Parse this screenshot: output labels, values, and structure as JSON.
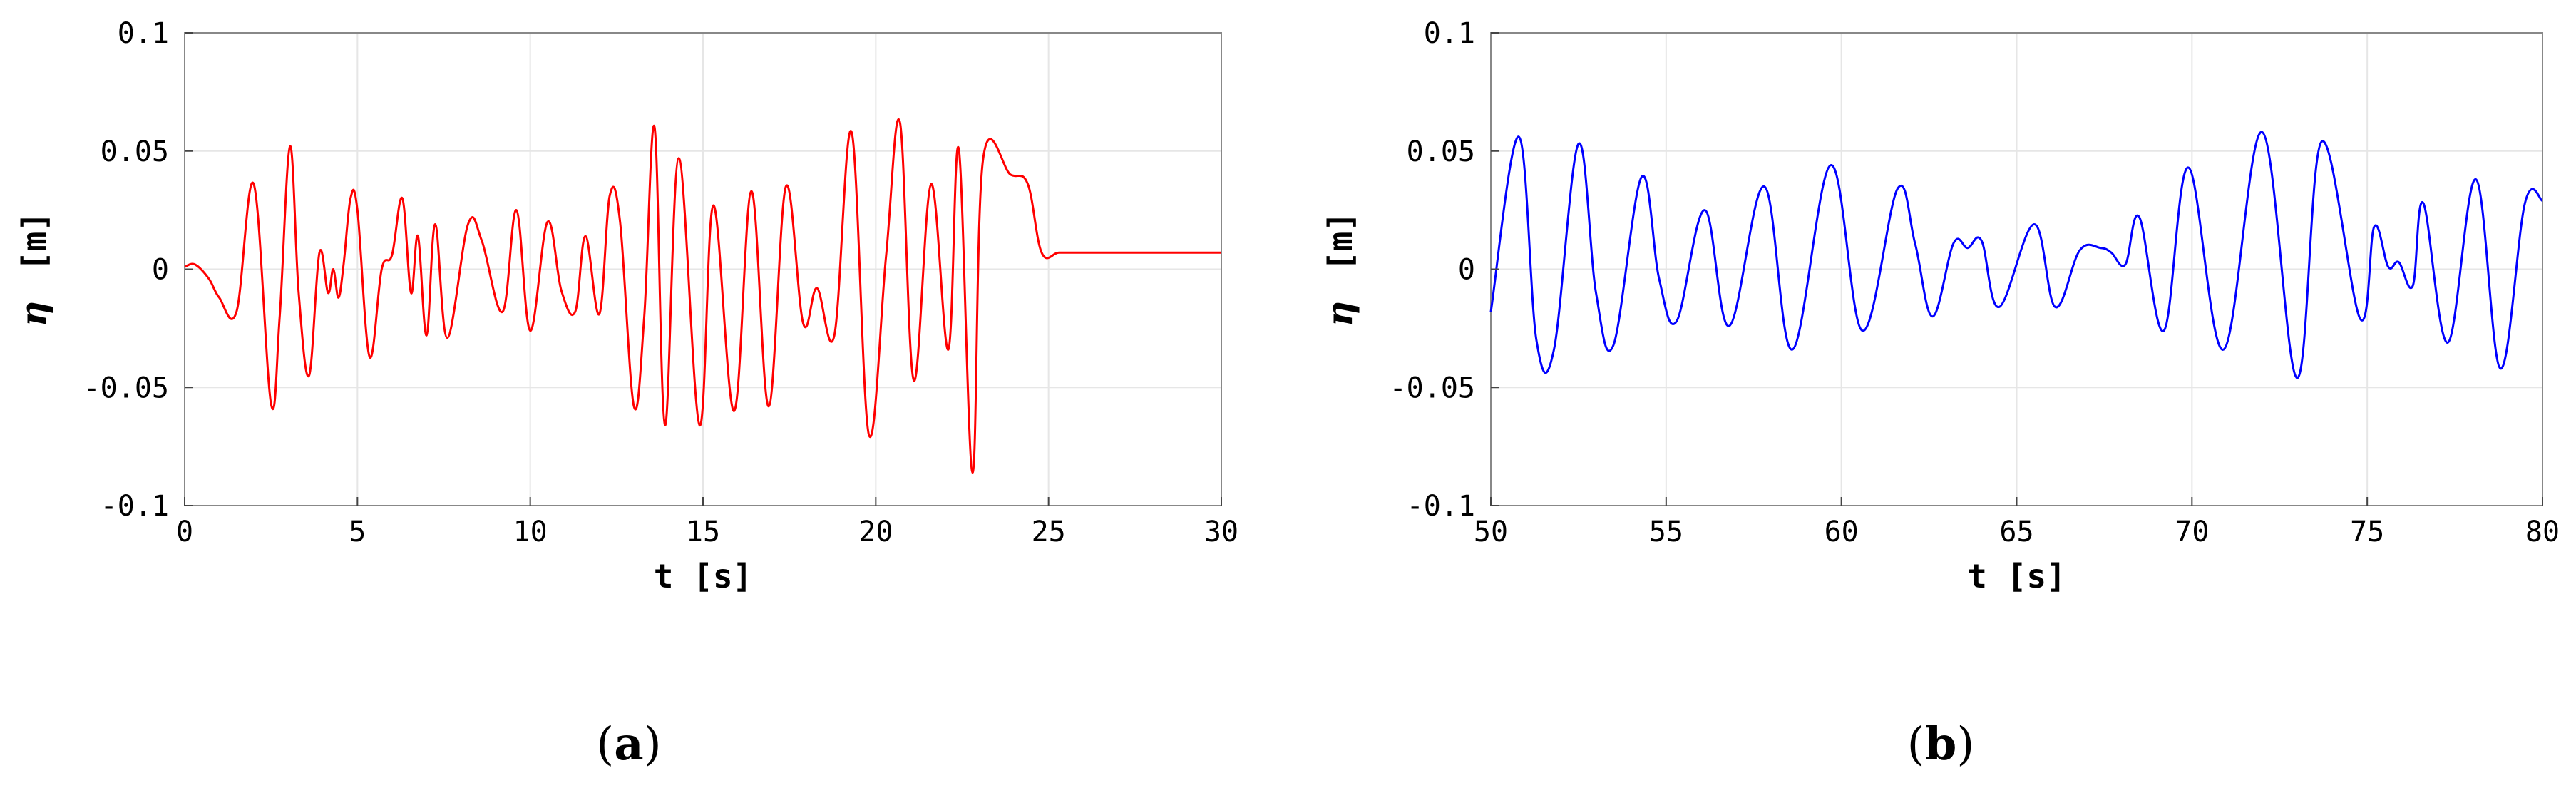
{
  "chart_data": [
    {
      "type": "line",
      "panel_label": "a",
      "xlabel": "t [s]",
      "ylabel_symbol": "η",
      "ylabel_unit": "[m]",
      "xlim": [
        0,
        30
      ],
      "ylim": [
        -0.1,
        0.1
      ],
      "xticks": [
        0,
        5,
        10,
        15,
        20,
        25,
        30
      ],
      "xtick_labels": [
        "0",
        "5",
        "10",
        "15",
        "20",
        "25",
        "30"
      ],
      "yticks": [
        -0.1,
        -0.05,
        0,
        0.05,
        0.1
      ],
      "ytick_labels": [
        "-0.1",
        "-0.05",
        "0",
        "0.05",
        "0.1"
      ],
      "grid": true,
      "series": [
        {
          "color": "#ff0000",
          "x": [
            0.0,
            0.3,
            0.7,
            1.0,
            1.5,
            2.0,
            2.5,
            2.75,
            3.05,
            3.3,
            3.6,
            3.9,
            4.15,
            4.3,
            4.45,
            4.6,
            4.8,
            5.0,
            5.35,
            5.7,
            6.0,
            6.3,
            6.55,
            6.75,
            7.0,
            7.25,
            7.6,
            8.2,
            8.6,
            9.2,
            9.6,
            10.0,
            10.5,
            10.9,
            11.3,
            11.6,
            12.0,
            12.3,
            12.6,
            13.0,
            13.3,
            13.6,
            13.9,
            14.3,
            14.9,
            15.3,
            15.9,
            16.4,
            16.9,
            17.4,
            17.9,
            18.3,
            18.8,
            19.3,
            19.8,
            20.3,
            20.7,
            21.1,
            21.6,
            22.1,
            22.4,
            22.8,
            23.1,
            23.9,
            24.4,
            24.8,
            25.3,
            25.9,
            26.3,
            26.8,
            27.3,
            27.9,
            28.4,
            28.8,
            29.3,
            29.6,
            30.0
          ],
          "y": [
            0.001,
            0.002,
            -0.004,
            -0.012,
            -0.018,
            0.036,
            -0.057,
            -0.02,
            0.052,
            -0.01,
            -0.045,
            0.007,
            -0.01,
            0.0,
            -0.012,
            0.002,
            0.03,
            0.025,
            -0.037,
            0.0,
            0.006,
            0.03,
            -0.01,
            0.014,
            -0.028,
            0.019,
            -0.029,
            0.019,
            0.012,
            -0.018,
            0.025,
            -0.026,
            0.02,
            -0.009,
            -0.018,
            0.014,
            -0.019,
            0.031,
            0.02,
            -0.058,
            -0.02,
            0.06,
            -0.066,
            0.047,
            -0.066,
            0.027,
            -0.06,
            0.033,
            -0.058,
            0.035,
            -0.023,
            -0.008,
            -0.028,
            0.058,
            -0.07,
            0.006,
            0.062,
            -0.047,
            0.036,
            -0.034,
            0.051,
            -0.086,
            0.046,
            0.04,
            0.036,
            0.007,
            0.007,
            0.007,
            0.007,
            0.007,
            0.007,
            0.007,
            0.007,
            0.007,
            0.007,
            0.007,
            0.007
          ]
        }
      ]
    },
    {
      "type": "line",
      "panel_label": "b",
      "xlabel": "t [s]",
      "ylabel_symbol": "η",
      "ylabel_unit": "[m]",
      "xlim": [
        50,
        80
      ],
      "ylim": [
        -0.1,
        0.1
      ],
      "xticks": [
        50,
        55,
        60,
        65,
        70,
        75,
        80
      ],
      "xtick_labels": [
        "50",
        "55",
        "60",
        "65",
        "70",
        "75",
        "80"
      ],
      "yticks": [
        -0.1,
        -0.05,
        0,
        0.05,
        0.1
      ],
      "ytick_labels": [
        "-0.1",
        "-0.05",
        "0",
        "0.05",
        "0.1"
      ],
      "grid": true,
      "series": [
        {
          "color": "#0000ff",
          "x": [
            50.0,
            50.8,
            51.3,
            51.8,
            52.5,
            53.0,
            53.5,
            54.3,
            54.8,
            55.3,
            56.1,
            56.8,
            57.8,
            58.6,
            59.7,
            60.6,
            61.6,
            62.1,
            62.6,
            63.2,
            63.6,
            64.0,
            64.5,
            65.5,
            66.1,
            66.8,
            67.4,
            67.7,
            68.1,
            68.5,
            69.2,
            69.9,
            70.9,
            72.0,
            73.0,
            73.7,
            74.8,
            75.2,
            75.6,
            75.9,
            76.3,
            76.6,
            77.3,
            78.1,
            78.8,
            79.5,
            80.0
          ],
          "y": [
            -0.018,
            0.056,
            -0.03,
            -0.034,
            0.053,
            -0.01,
            -0.032,
            0.039,
            -0.004,
            -0.022,
            0.025,
            -0.024,
            0.035,
            -0.034,
            0.044,
            -0.026,
            0.034,
            0.011,
            -0.02,
            0.011,
            0.009,
            0.012,
            -0.016,
            0.019,
            -0.016,
            0.008,
            0.009,
            0.007,
            0.002,
            0.022,
            -0.026,
            0.043,
            -0.034,
            0.058,
            -0.046,
            0.054,
            -0.021,
            0.018,
            0.001,
            0.003,
            -0.007,
            0.028,
            -0.031,
            0.038,
            -0.042,
            0.028,
            0.029
          ]
        }
      ]
    }
  ]
}
